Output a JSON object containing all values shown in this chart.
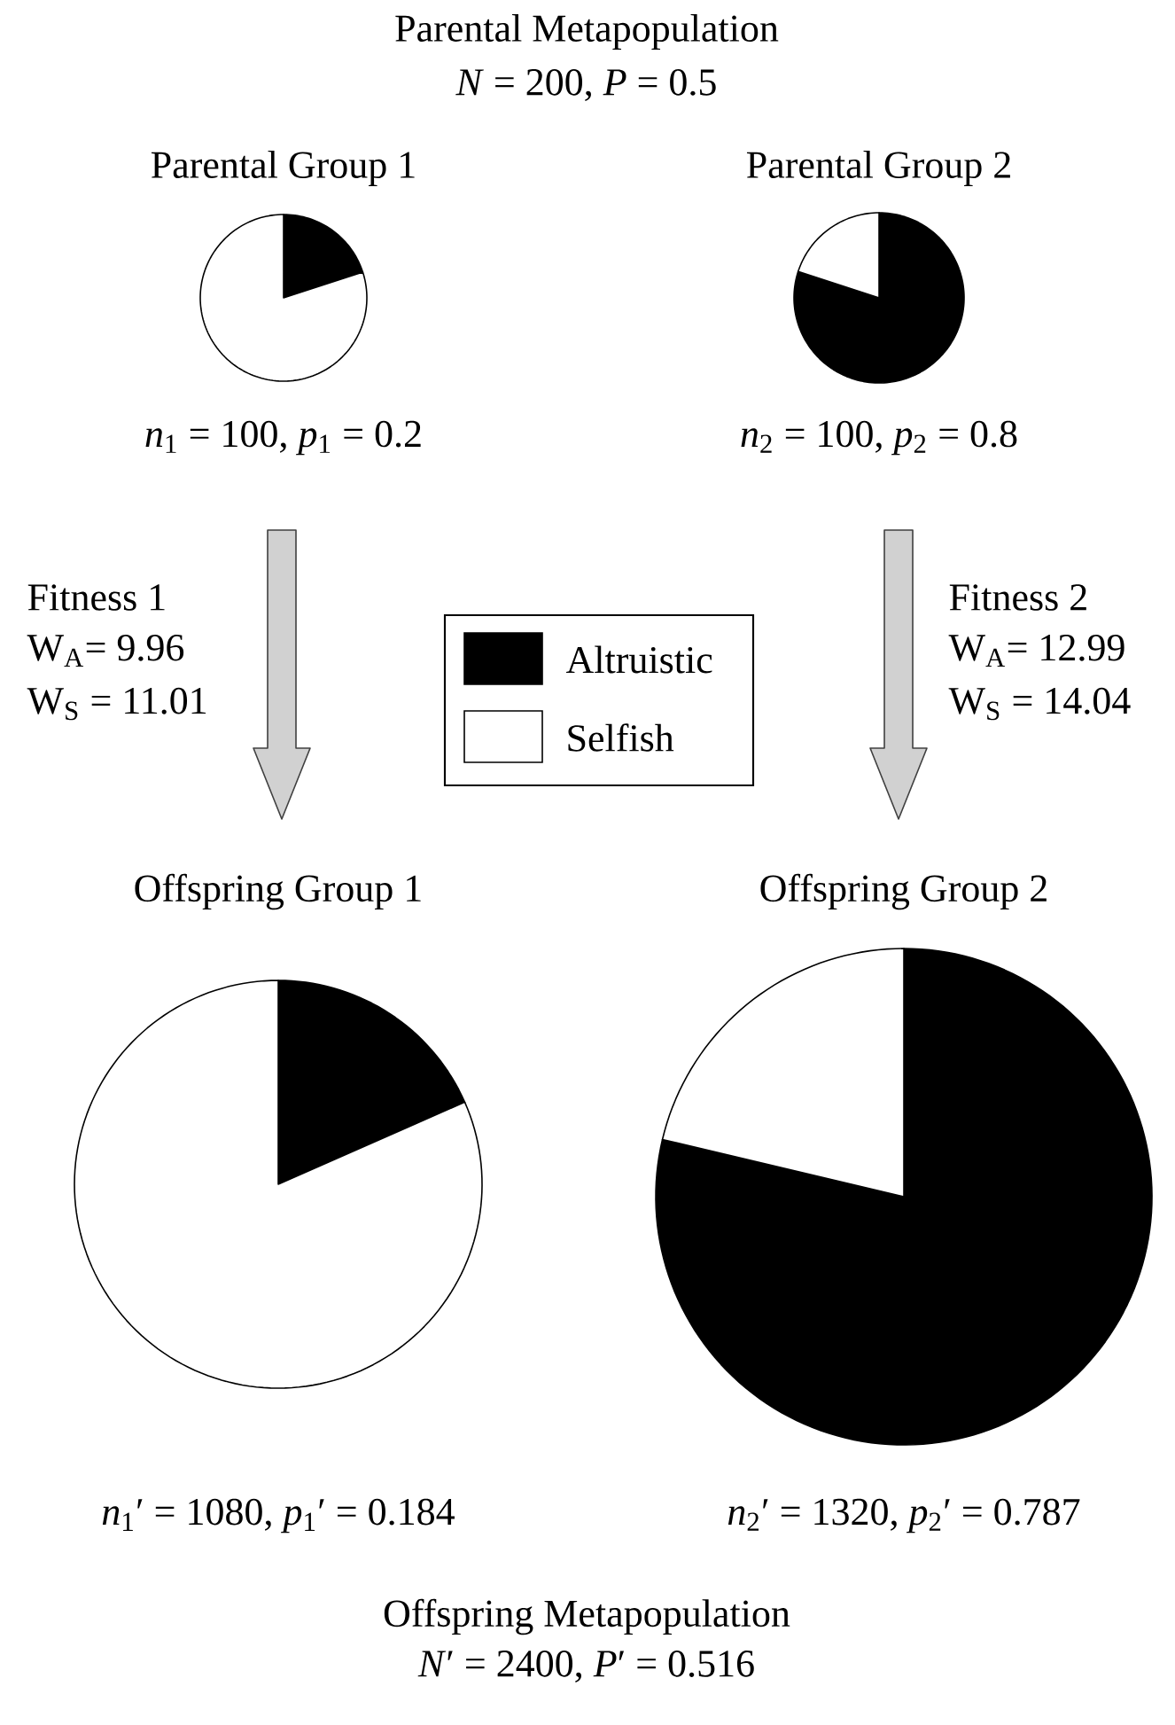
{
  "chart_data": [
    {
      "type": "pie",
      "title": "Parental Group 1",
      "subtitle": "*n*$_{1}$ = 100, *p*$_{1}$ = 0.2",
      "categories": [
        "Altruistic",
        "Selfish"
      ],
      "values": [
        20,
        80
      ],
      "colors": [
        "#000000",
        "#ffffff"
      ],
      "legend": "right",
      "annotations": [
        "Parental Metapopulation",
        "*N* = 200, *P* = 0.5",
        "Fitness 1",
        "W$_{A}$= 9.96",
        "W$_{S}$ = 11.01"
      ]
    },
    {
      "type": "pie",
      "title": "Parental Group 2",
      "subtitle": "*n*$_{2}$ = 100, *p*$_{2}$ = 0.8",
      "categories": [
        null,
        null
      ],
      "values": [
        80,
        20
      ],
      "colors": [
        "#000000",
        "#ffffff"
      ],
      "annotations": [
        "Fitness 2",
        "W$_{A}$= 12.99",
        "W$_{S}$ = 14.04"
      ]
    },
    {
      "type": "pie",
      "title": "Offspring Group 1",
      "subtitle": "*n*$_{1}$′ = 1080, *p*$_{1}$′ = 0.184",
      "categories": [
        null,
        null
      ],
      "values": [
        18.4,
        81.6
      ],
      "colors": [
        "#000000",
        "#ffffff"
      ],
      "annotations": [
        "Offspring Metapopulation",
        "*N*′ = 2400, *P*′ = 0.516"
      ]
    },
    {
      "type": "pie",
      "title": "Offspring Group 2",
      "subtitle": "*n*$_{2}$′ = 1320, *p*$_{2}$′ = 0.787",
      "categories": [
        null,
        null
      ],
      "values": [
        78.7,
        21.3
      ],
      "colors": [
        "#000000",
        "#ffffff"
      ]
    }
  ]
}
